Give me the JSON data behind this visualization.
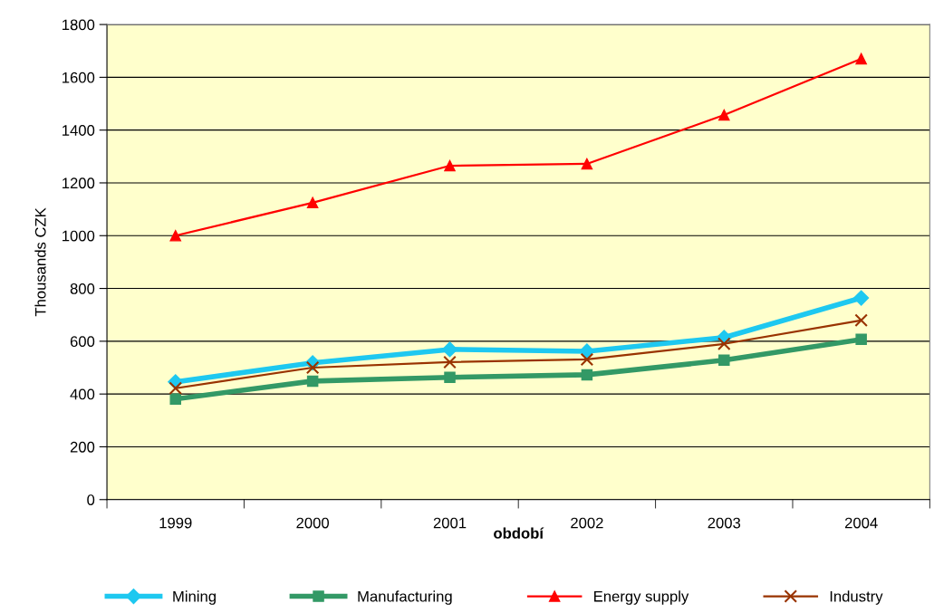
{
  "chart_data": {
    "type": "line",
    "xlabel": "období",
    "ylabel": "Thousands CZK",
    "categories": [
      "1999",
      "2000",
      "2001",
      "2002",
      "2003",
      "2004"
    ],
    "ylim": [
      0,
      1800
    ],
    "yticks": [
      0,
      200,
      400,
      600,
      800,
      1000,
      1200,
      1400,
      1600,
      1800
    ],
    "grid": "y",
    "legend": "bottom",
    "series": [
      {
        "name": "Mining",
        "color": "#1ec8f0",
        "marker": "diamond",
        "values": [
          446,
          518,
          569,
          562,
          614,
          764
        ]
      },
      {
        "name": "Manufacturing",
        "color": "#339966",
        "marker": "square",
        "values": [
          381,
          449,
          463,
          473,
          528,
          607
        ]
      },
      {
        "name": "Energy supply",
        "color": "#ff0000",
        "marker": "triangle",
        "values": [
          1000,
          1125,
          1265,
          1272,
          1457,
          1670
        ]
      },
      {
        "name": "Industry",
        "color": "#993300",
        "marker": "cross",
        "values": [
          422,
          500,
          521,
          531,
          590,
          679
        ]
      }
    ]
  }
}
